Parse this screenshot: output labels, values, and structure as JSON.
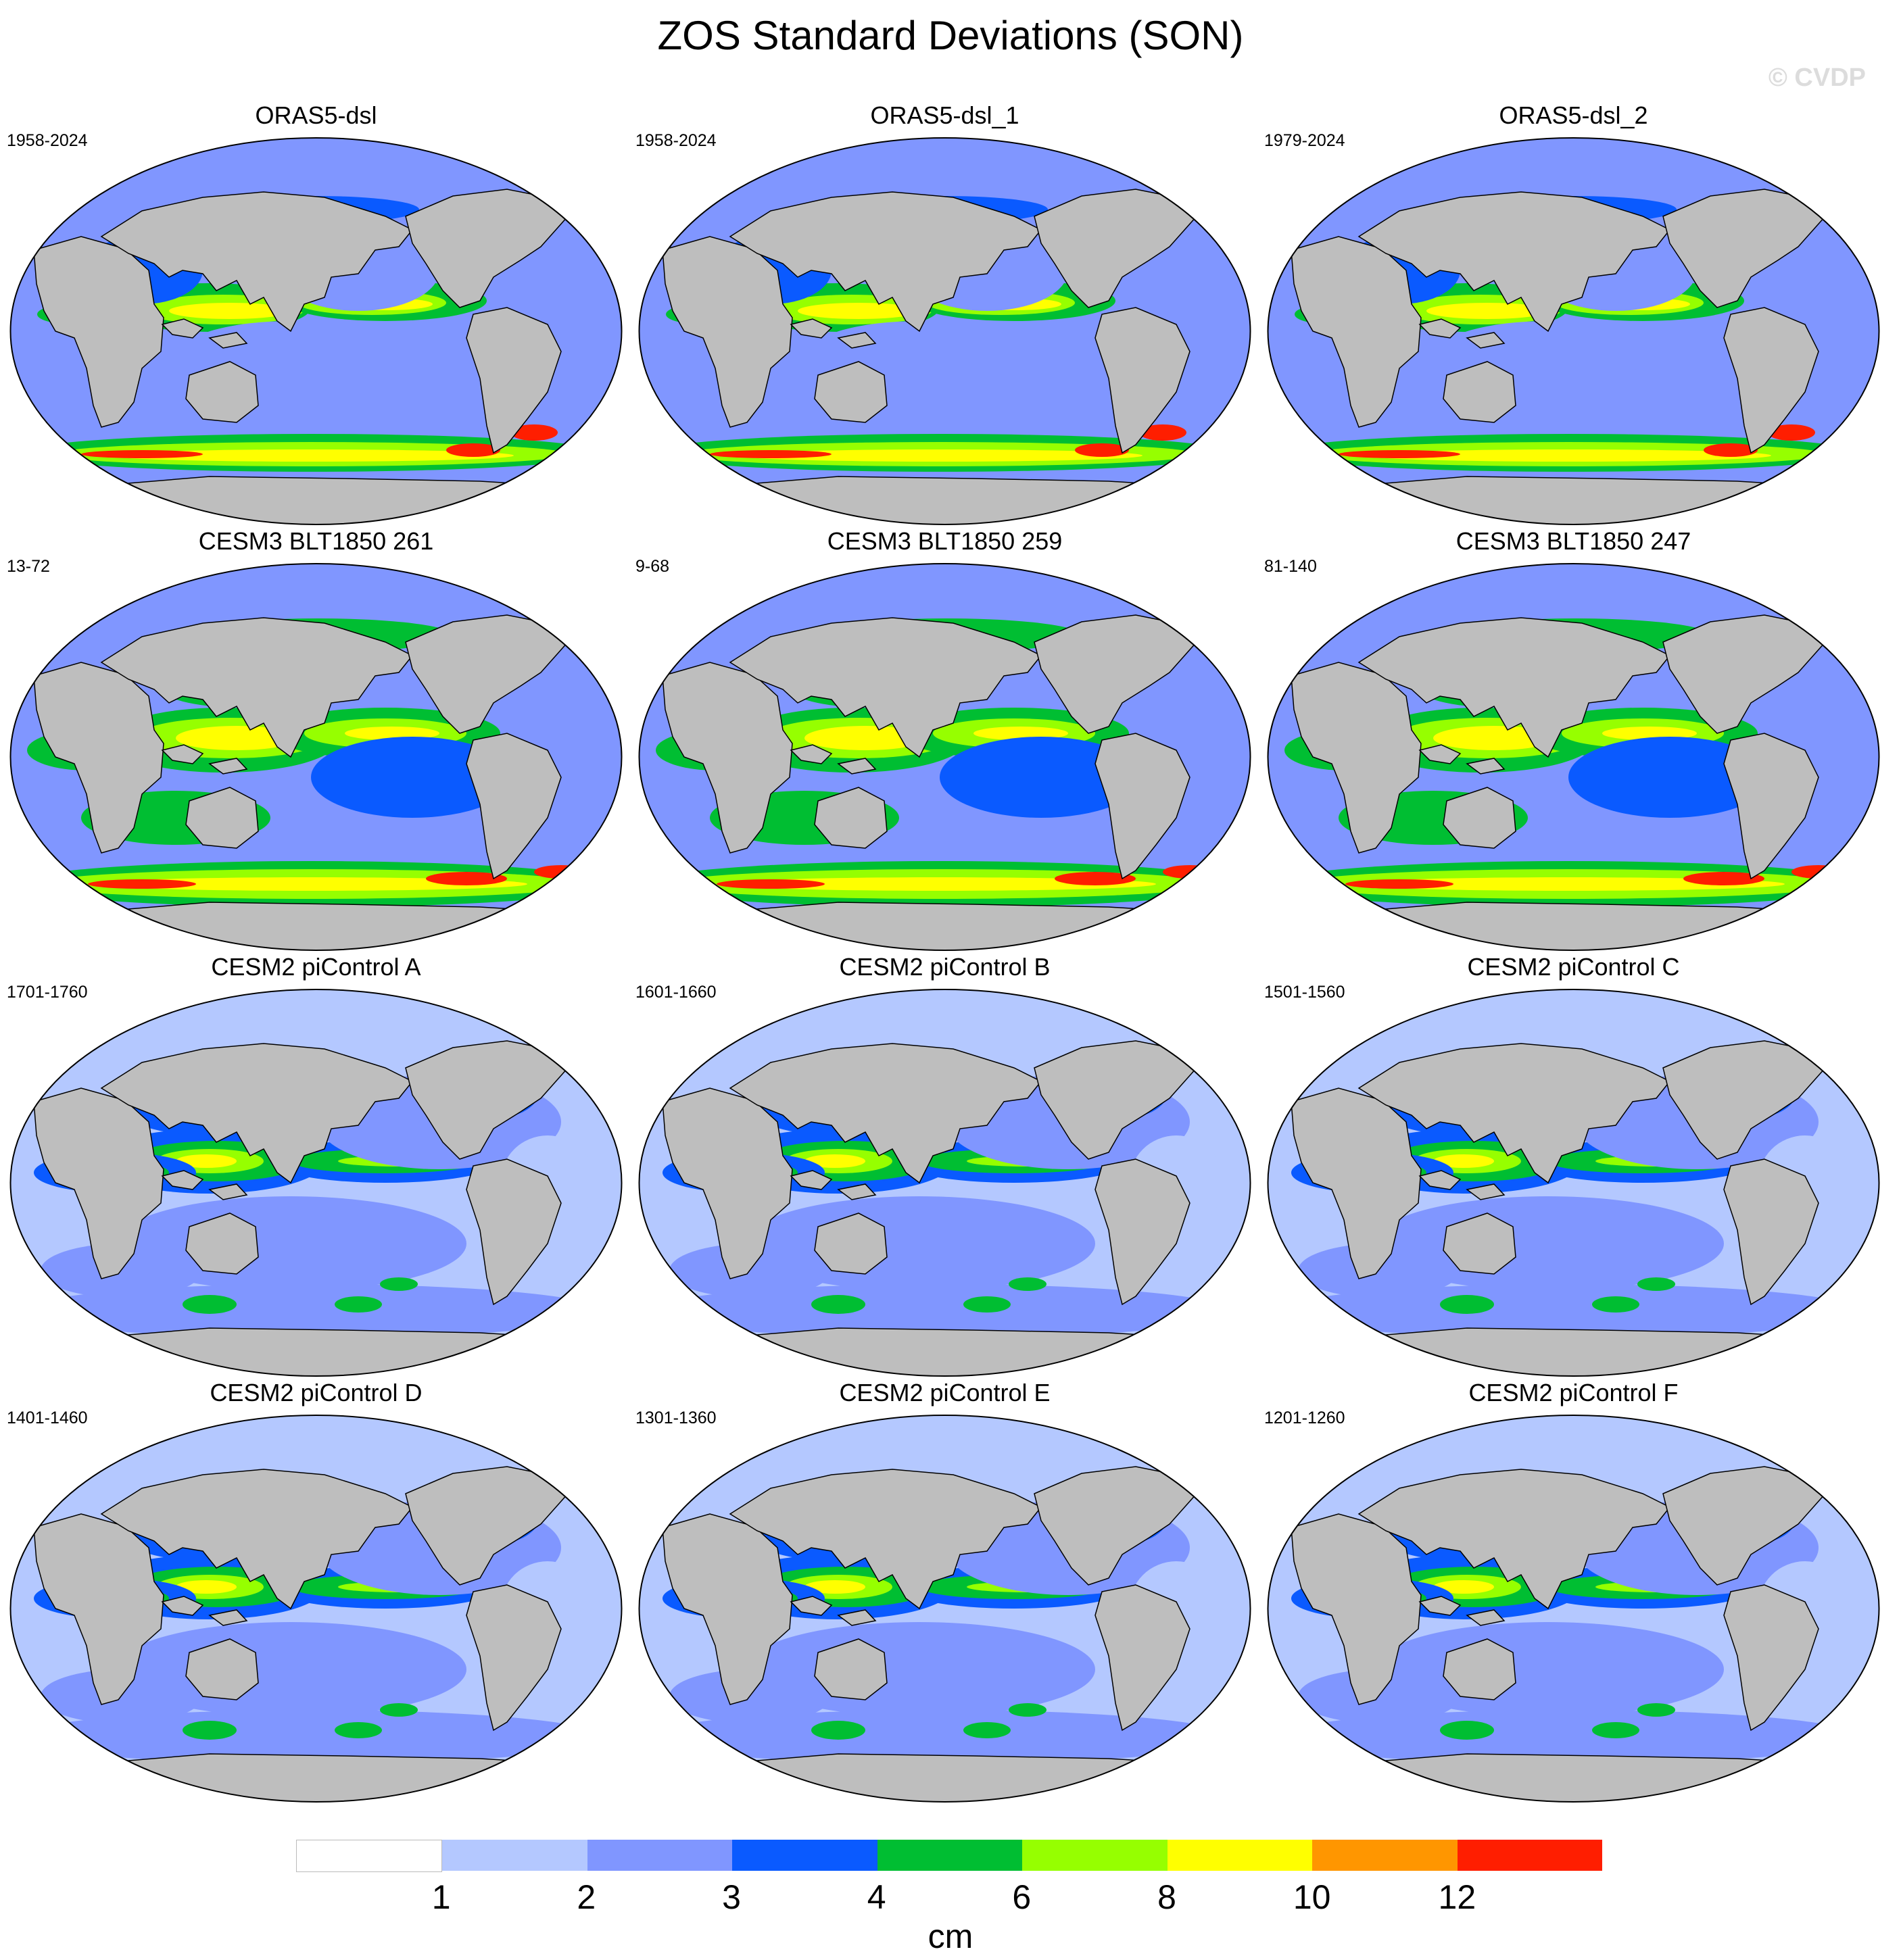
{
  "title": "ZOS Standard Deviations (SON)",
  "watermark": "© CVDP",
  "panels": [
    {
      "name": "ORAS5-dsl",
      "years": "1958-2024",
      "pattern": "obs"
    },
    {
      "name": "ORAS5-dsl_1",
      "years": "1958-2024",
      "pattern": "obs"
    },
    {
      "name": "ORAS5-dsl_2",
      "years": "1979-2024",
      "pattern": "obs"
    },
    {
      "name": "CESM3 BLT1850 261",
      "years": "13-72",
      "pattern": "cesm3"
    },
    {
      "name": "CESM3 BLT1850 259",
      "years": "9-68",
      "pattern": "cesm3"
    },
    {
      "name": "CESM3 BLT1850 247",
      "years": "81-140",
      "pattern": "cesm3"
    },
    {
      "name": "CESM2 piControl A",
      "years": "1701-1760",
      "pattern": "cesm2"
    },
    {
      "name": "CESM2 piControl B",
      "years": "1601-1660",
      "pattern": "cesm2"
    },
    {
      "name": "CESM2 piControl C",
      "years": "1501-1560",
      "pattern": "cesm2"
    },
    {
      "name": "CESM2 piControl D",
      "years": "1401-1460",
      "pattern": "cesm2"
    },
    {
      "name": "CESM2 piControl E",
      "years": "1301-1360",
      "pattern": "cesm2"
    },
    {
      "name": "CESM2 piControl F",
      "years": "1201-1260",
      "pattern": "cesm2"
    }
  ],
  "colorbar": {
    "unit": "cm",
    "ticks": [
      "1",
      "2",
      "3",
      "4",
      "6",
      "8",
      "10",
      "12"
    ],
    "colors": [
      "#ffffff",
      "#b4c8ff",
      "#8096ff",
      "#0a5aff",
      "#00be32",
      "#96ff00",
      "#ffff00",
      "#ff9600",
      "#ff1e00"
    ]
  },
  "colors": {
    "land": "#bebebe",
    "coast": "#000000",
    "background": "#ffffff"
  }
}
